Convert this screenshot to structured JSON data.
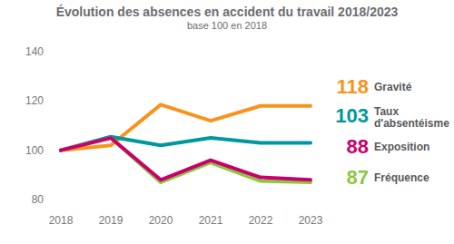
{
  "chart_data": {
    "type": "line",
    "title": "Évolution des absences en accident du travail 2018/2023",
    "subtitle": "base 100 en 2018",
    "categories": [
      "2018",
      "2019",
      "2020",
      "2021",
      "2022",
      "2023"
    ],
    "series": [
      {
        "name": "Gravité",
        "color": "#f7941d",
        "values": [
          100,
          102,
          118.5,
          112,
          118,
          118
        ]
      },
      {
        "name": "Taux d'absentéisme",
        "color": "#00979d",
        "values": [
          100,
          105.5,
          102,
          105,
          103,
          103
        ]
      },
      {
        "name": "Fréquence",
        "color": "#8dc63f",
        "values": [
          100,
          105,
          87,
          95,
          87.5,
          87
        ]
      },
      {
        "name": "Exposition",
        "color": "#c8006e",
        "values": [
          100,
          105,
          88,
          96,
          89,
          88
        ]
      }
    ],
    "ylim": [
      80,
      140
    ],
    "yticks": [
      80,
      100,
      120,
      140
    ],
    "grid": false,
    "legend": "right"
  }
}
